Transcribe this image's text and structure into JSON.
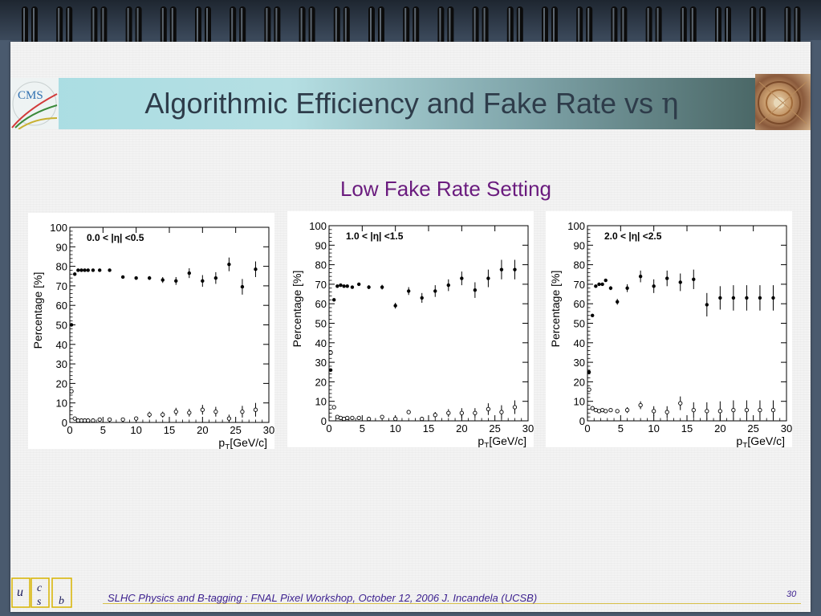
{
  "slide": {
    "title_text": "Algorithmic Efficiency and Fake Rate vs ",
    "title_symbol": "η",
    "subtitle": "Low Fake Rate Setting",
    "footer": "SLHC Physics and B-tagging : FNAL Pixel Workshop, October 12, 2006   J. Incandela (UCSB)",
    "page_number": "30",
    "cms_logo_text": "CMS",
    "ucsb_letters": [
      "u",
      "c",
      "s",
      "b"
    ]
  },
  "colors": {
    "title": "#2e3c4a",
    "subtitle": "#6a1b7e",
    "footer": "#3b1f8e",
    "logo_gold": "#d8b400"
  },
  "chart_data": [
    {
      "type": "scatter",
      "title": "0.0 < |η| <0.5",
      "xlabel": "p_T[GeV/c]",
      "ylabel": "Percentage [%]",
      "xlim": [
        0,
        30
      ],
      "ylim": [
        0,
        100
      ],
      "x_ticks": [
        0,
        5,
        10,
        15,
        20,
        25,
        30
      ],
      "y_ticks": [
        0,
        10,
        20,
        30,
        40,
        50,
        60,
        70,
        80,
        90,
        100
      ],
      "series": [
        {
          "marker": "filled",
          "x": [
            0.25,
            0.75,
            1.25,
            1.75,
            2.25,
            2.75,
            3.5,
            4.5,
            6,
            8,
            10,
            12,
            14,
            16,
            18,
            20,
            22,
            24,
            26,
            28
          ],
          "y": [
            50,
            76,
            78,
            78,
            78,
            78,
            78,
            78,
            78,
            74.5,
            74,
            74,
            73,
            72.5,
            76.5,
            72.5,
            74,
            81,
            69.5,
            78.5
          ],
          "err": [
            0.8,
            0.8,
            0.7,
            0.7,
            0.7,
            0.7,
            0.7,
            0.7,
            0.7,
            0.8,
            0.9,
            1,
            1.5,
            2,
            2.5,
            3,
            3,
            3.5,
            4,
            4
          ]
        },
        {
          "marker": "open",
          "x": [
            0.25,
            0.75,
            1.25,
            1.75,
            2.25,
            2.75,
            3.5,
            4.5,
            6,
            8,
            10,
            12,
            14,
            16,
            18,
            20,
            22,
            24,
            26,
            28
          ],
          "y": [
            16,
            2,
            1,
            1,
            1,
            1,
            1,
            1.5,
            1.5,
            1.5,
            2,
            4,
            4,
            5.5,
            5,
            6.5,
            5.5,
            2,
            5.5,
            6.5
          ],
          "err": [
            0,
            0,
            0,
            0,
            0,
            0,
            0,
            0,
            0,
            0.5,
            1,
            1.5,
            1.5,
            2,
            2,
            2.5,
            2.5,
            2,
            3,
            3.5
          ]
        }
      ]
    },
    {
      "type": "scatter",
      "title": "1.0 < |η| <1.5",
      "xlabel": "p_T[GeV/c]",
      "ylabel": "Percentage [%]",
      "xlim": [
        0,
        30
      ],
      "ylim": [
        0,
        100
      ],
      "x_ticks": [
        0,
        5,
        10,
        15,
        20,
        25,
        30
      ],
      "y_ticks": [
        0,
        10,
        20,
        30,
        40,
        50,
        60,
        70,
        80,
        90,
        100
      ],
      "series": [
        {
          "marker": "filled",
          "x": [
            0.25,
            0.75,
            1.25,
            1.75,
            2.25,
            2.75,
            3.5,
            4.5,
            6,
            8,
            10,
            12,
            14,
            16,
            18,
            20,
            22,
            24,
            26,
            28
          ],
          "y": [
            26,
            62,
            69,
            69.5,
            69,
            69,
            68.5,
            70,
            68.5,
            68.5,
            59,
            66.5,
            63,
            66.5,
            69.5,
            73,
            67,
            73,
            77.5,
            77.5
          ],
          "err": [
            0.8,
            0.8,
            0.8,
            0.8,
            0.8,
            0.8,
            0.8,
            0.8,
            1,
            1.2,
            1.5,
            2,
            2.5,
            3,
            3,
            3.5,
            4,
            4.5,
            5,
            5
          ]
        },
        {
          "marker": "open",
          "x": [
            0.25,
            0.75,
            1.25,
            1.75,
            2.25,
            2.75,
            3.5,
            4.5,
            6,
            8,
            10,
            12,
            14,
            16,
            18,
            20,
            22,
            24,
            26,
            28
          ],
          "y": [
            35,
            7,
            2,
            1.5,
            1,
            1.5,
            1.5,
            1.5,
            1,
            2,
            1,
            4.5,
            1,
            3,
            4,
            4,
            4,
            6,
            4.5,
            7
          ],
          "err": [
            0,
            0,
            0,
            0,
            0,
            0,
            0,
            0,
            0,
            0.5,
            0.5,
            1,
            1,
            1.5,
            2,
            2.5,
            2.5,
            3,
            3.5,
            3.5
          ]
        }
      ]
    },
    {
      "type": "scatter",
      "title": "2.0 < |η| <2.5",
      "xlabel": "p_T[GeV/c]",
      "ylabel": "Percentage [%]",
      "xlim": [
        0,
        30
      ],
      "ylim": [
        0,
        100
      ],
      "x_ticks": [
        0,
        5,
        10,
        15,
        20,
        25,
        30
      ],
      "y_ticks": [
        0,
        10,
        20,
        30,
        40,
        50,
        60,
        70,
        80,
        90,
        100
      ],
      "series": [
        {
          "marker": "filled",
          "x": [
            0.25,
            0.75,
            1.25,
            1.75,
            2.25,
            2.75,
            3.5,
            4.5,
            6,
            8,
            10,
            12,
            14,
            16,
            18,
            20,
            22,
            24,
            26,
            28
          ],
          "y": [
            25,
            54,
            69,
            70,
            70,
            72,
            68,
            61,
            68,
            74,
            69,
            73,
            71,
            72.5,
            59.5,
            63,
            63,
            63,
            63,
            63
          ],
          "err": [
            0.8,
            0.8,
            0.8,
            0.8,
            0.8,
            0.8,
            1,
            1.5,
            2,
            3,
            3.5,
            4,
            4.5,
            5,
            6,
            6,
            6.5,
            6.5,
            6.5,
            6.5
          ]
        },
        {
          "marker": "open",
          "x": [
            0.25,
            0.75,
            1.25,
            1.75,
            2.25,
            2.75,
            3.5,
            4.5,
            6,
            8,
            10,
            12,
            14,
            16,
            18,
            20,
            22,
            24,
            26,
            28
          ],
          "y": [
            16,
            6.5,
            5.5,
            5,
            5.5,
            5,
            5.5,
            5,
            5.5,
            8,
            5,
            4.5,
            9,
            5.5,
            5,
            5,
            5.5,
            5.5,
            5.5,
            5.5
          ],
          "err": [
            0,
            0,
            0,
            0,
            0,
            0,
            0.5,
            1,
            1.5,
            2,
            2.5,
            3,
            3.5,
            4,
            4.5,
            5,
            5,
            5,
            5,
            5
          ]
        }
      ]
    }
  ]
}
